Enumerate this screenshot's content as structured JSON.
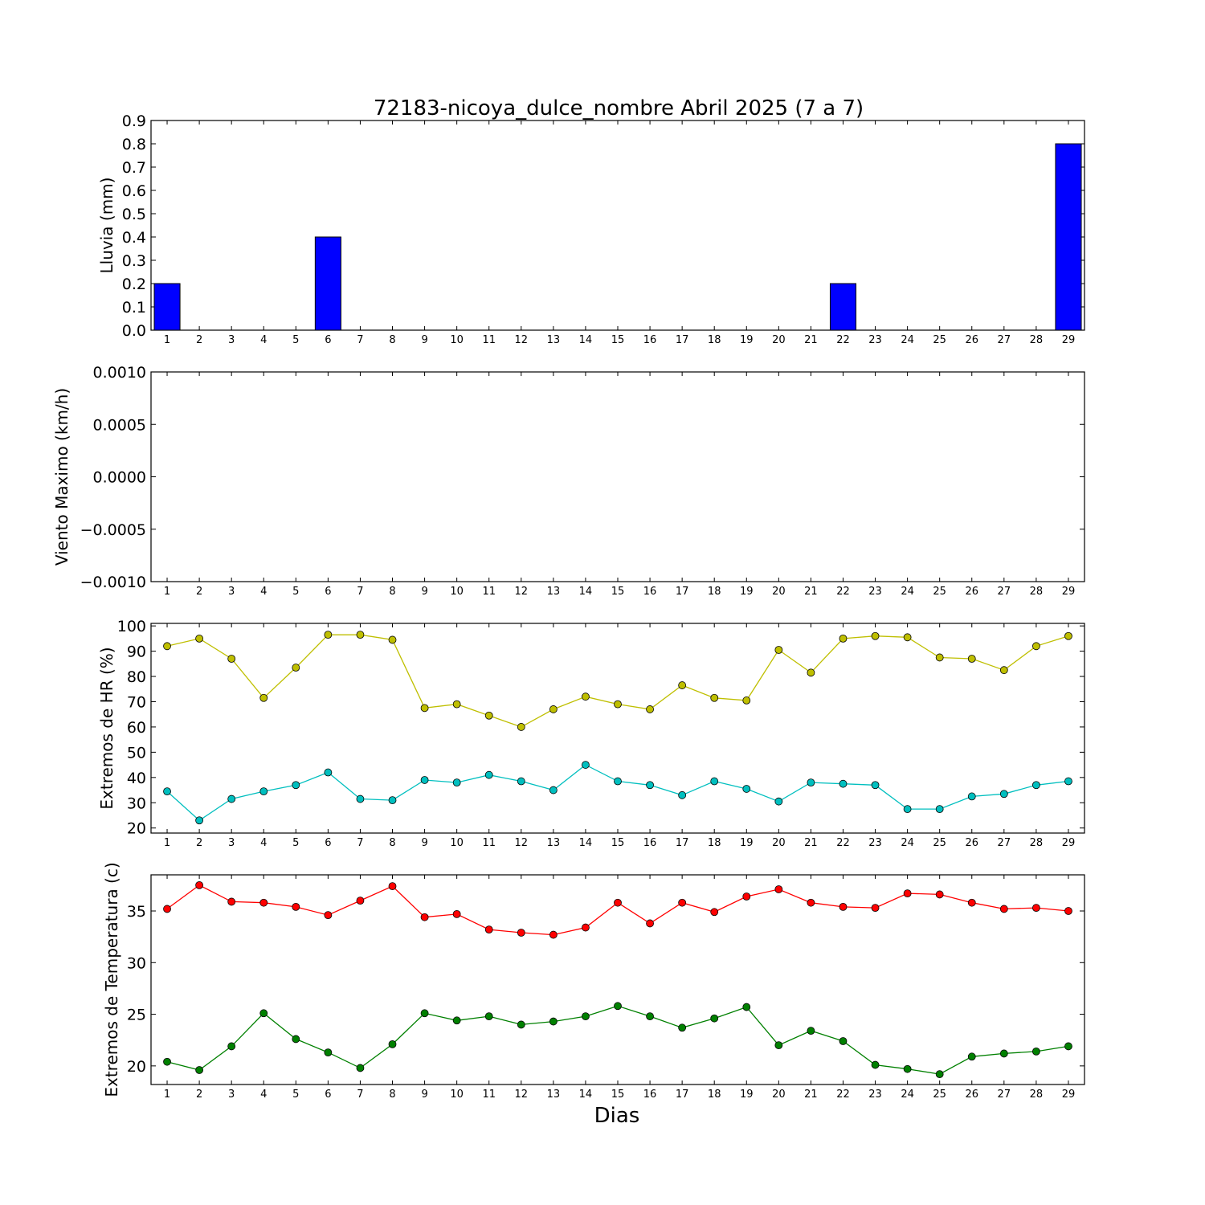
{
  "title": "72183-nicoya_dulce_nombre Abril 2025  (7 a 7)",
  "xlabel": "Dias",
  "days": [
    1,
    2,
    3,
    4,
    5,
    6,
    7,
    8,
    9,
    10,
    11,
    12,
    13,
    14,
    15,
    16,
    17,
    18,
    19,
    20,
    21,
    22,
    23,
    24,
    25,
    26,
    27,
    28,
    29
  ],
  "chart_data": [
    {
      "type": "bar",
      "ylabel": "Lluvia (mm)",
      "ylim": [
        0,
        0.9
      ],
      "yticks": [
        "0.0",
        "0.1",
        "0.2",
        "0.3",
        "0.4",
        "0.5",
        "0.6",
        "0.7",
        "0.8",
        "0.9"
      ],
      "series": [
        {
          "color": "#0000ff",
          "values": [
            0.2,
            0,
            0,
            0,
            0,
            0.4,
            0,
            0,
            0,
            0,
            0,
            0,
            0,
            0,
            0,
            0,
            0,
            0,
            0,
            0,
            0,
            0.2,
            0,
            0,
            0,
            0,
            0,
            0,
            0.8
          ]
        }
      ]
    },
    {
      "type": "line",
      "ylabel": "Viento Maximo (km/h)",
      "ylim": [
        -0.001,
        0.001
      ],
      "yticks": [
        "−0.0010",
        "−0.0005",
        "0.0000",
        "0.0005",
        "0.0010"
      ],
      "series": []
    },
    {
      "type": "line",
      "ylabel": "Extremos de HR (%)",
      "ylim": [
        18,
        101
      ],
      "yticks": [
        "20",
        "30",
        "40",
        "50",
        "60",
        "70",
        "80",
        "90",
        "100"
      ],
      "series": [
        {
          "color": "#bfbf00",
          "values": [
            92,
            95,
            87,
            71.5,
            83.5,
            96.5,
            96.5,
            94.5,
            67.5,
            69,
            64.5,
            60,
            67,
            72,
            69,
            67,
            76.5,
            71.5,
            70.5,
            90.5,
            81.5,
            95,
            96,
            95.5,
            87.5,
            87,
            82.5,
            92,
            96
          ]
        },
        {
          "color": "#00bfbf",
          "values": [
            34.5,
            23,
            31.5,
            34.5,
            37,
            42,
            31.5,
            31,
            39,
            38,
            41,
            38.5,
            35,
            45,
            38.5,
            37,
            33,
            38.5,
            35.5,
            30.5,
            38,
            37.5,
            37,
            27.5,
            27.5,
            32.5,
            33.5,
            37,
            38.5
          ]
        }
      ]
    },
    {
      "type": "line",
      "ylabel": "Extremos de Temperatura (c)",
      "ylim": [
        18.2,
        38.5
      ],
      "yticks": [
        "20",
        "25",
        "30",
        "35"
      ],
      "series": [
        {
          "color": "#ff0000",
          "values": [
            35.2,
            37.5,
            35.9,
            35.8,
            35.4,
            34.6,
            36,
            37.4,
            34.4,
            34.7,
            33.2,
            32.9,
            32.7,
            33.4,
            35.8,
            33.8,
            35.8,
            34.9,
            36.4,
            37.1,
            35.8,
            35.4,
            35.3,
            36.7,
            36.6,
            35.8,
            35.2,
            35.3,
            35
          ]
        },
        {
          "color": "#008000",
          "values": [
            20.4,
            19.6,
            21.9,
            25.1,
            22.6,
            21.3,
            19.8,
            22.1,
            25.1,
            24.4,
            24.8,
            24,
            24.3,
            24.8,
            25.8,
            24.8,
            23.7,
            24.6,
            25.7,
            22,
            23.4,
            22.4,
            20.1,
            19.7,
            19.2,
            20.9,
            21.2,
            21.4,
            21.9
          ]
        }
      ]
    }
  ]
}
